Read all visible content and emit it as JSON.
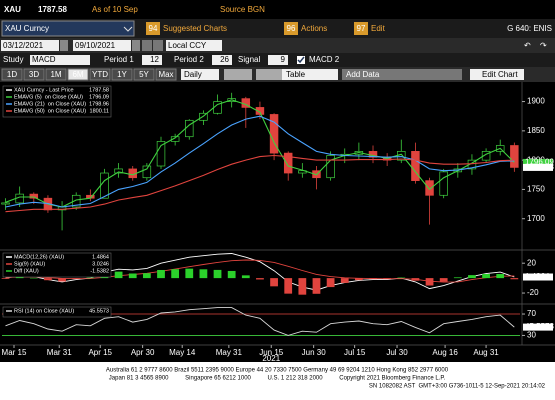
{
  "header": {
    "ticker": "XAU",
    "price": 1787.58,
    "as_of": "As of 10 Sep",
    "source": "Source BGN"
  },
  "toolbar": {
    "security": "XAU Curncy",
    "menus": [
      {
        "key": "94",
        "label": "Suggested Charts"
      },
      {
        "key": "96",
        "label": "Actions"
      },
      {
        "key": "97",
        "label": "Edit"
      }
    ],
    "page_id": "G 640: ENIS",
    "start_date": "03/12/2021",
    "end_date": "09/10/2021",
    "currency": "Local CCY",
    "study_label": "Study",
    "study": "MACD",
    "period1_label": "Period 1",
    "period1": 12,
    "period2_label": "Period 2",
    "period2": 26,
    "signal_label": "Signal",
    "signal": 9,
    "study_name": "MACD 2",
    "ranges": [
      "1D",
      "3D",
      "1M",
      "6M",
      "YTD",
      "1Y",
      "5Y",
      "Max"
    ],
    "active_range": 3,
    "frequency": "Daily",
    "table": "Table",
    "add_data": "Add Data",
    "edit_chart": "Edit Chart"
  },
  "chart_data": [
    {
      "type": "candlestick",
      "legend": "upper-left",
      "categories": [
        null,
        null,
        null,
        null,
        null,
        null,
        null,
        null,
        null,
        null,
        null,
        null,
        null,
        null,
        null,
        null,
        null,
        null,
        null,
        null,
        null,
        null,
        null,
        null,
        null,
        null,
        null,
        null,
        null,
        null,
        null,
        null,
        null,
        null,
        null,
        null,
        null
      ],
      "xlim": [
        -0.25,
        36.4
      ],
      "xticks": [
        {
          "value": 0.6,
          "label": "Mar 15"
        },
        {
          "value": 3.8,
          "label": "Mar 31"
        },
        {
          "value": 6.7,
          "label": "Apr 15"
        },
        {
          "value": 9.7,
          "label": "Apr 30"
        },
        {
          "value": 12.5,
          "label": "May 14"
        },
        {
          "value": 15.8,
          "label": "May 31"
        },
        {
          "value": 18.8,
          "label": "Jun 15"
        },
        {
          "value": 21.8,
          "label": "Jun 30"
        },
        {
          "value": 24.7,
          "label": "Jul 15"
        },
        {
          "value": 27.7,
          "label": "Jul 30"
        },
        {
          "value": 31.1,
          "label": "Aug 16"
        },
        {
          "value": 34.0,
          "label": "Aug 31"
        }
      ],
      "x_year": "2021",
      "ylim": [
        1650,
        1930
      ],
      "yticks": [
        1700,
        1750,
        1800,
        1850,
        1900
      ],
      "candles": {
        "name": "XAU Curncy - Last Price",
        "color": "#ffffff",
        "up_color": "#3fd13f",
        "down_color": "#e0443e",
        "open": [
          1725,
          1727,
          1742,
          1735,
          1715,
          1720,
          1740,
          1735,
          1778,
          1785,
          1770,
          1790,
          1832,
          1840,
          1868,
          1880,
          1900,
          1905,
          1890,
          1878,
          1812,
          1778,
          1782,
          1770,
          1808,
          1810,
          1815,
          1805,
          1800,
          1815,
          1765,
          1740,
          1780,
          1785,
          1800,
          1815,
          1825
        ],
        "high": [
          1735,
          1755,
          1745,
          1740,
          1730,
          1745,
          1750,
          1785,
          1795,
          1790,
          1795,
          1840,
          1845,
          1870,
          1885,
          1912,
          1915,
          1908,
          1900,
          1880,
          1815,
          1795,
          1790,
          1815,
          1820,
          1830,
          1825,
          1812,
          1835,
          1830,
          1770,
          1785,
          1795,
          1810,
          1820,
          1835,
          1830
        ],
        "low": [
          1715,
          1720,
          1725,
          1710,
          1680,
          1715,
          1730,
          1735,
          1770,
          1765,
          1765,
          1785,
          1825,
          1835,
          1860,
          1878,
          1890,
          1855,
          1870,
          1800,
          1765,
          1770,
          1750,
          1765,
          1795,
          1800,
          1795,
          1790,
          1795,
          1760,
          1690,
          1735,
          1770,
          1775,
          1795,
          1808,
          1780
        ],
        "close": [
          1727,
          1742,
          1735,
          1715,
          1720,
          1740,
          1735,
          1778,
          1785,
          1770,
          1790,
          1832,
          1840,
          1868,
          1880,
          1900,
          1905,
          1890,
          1878,
          1812,
          1778,
          1782,
          1770,
          1808,
          1810,
          1815,
          1805,
          1800,
          1815,
          1765,
          1740,
          1780,
          1785,
          1800,
          1815,
          1825,
          1787.58
        ]
      },
      "series": [
        {
          "name": "EMAVG (5)  on Close (XAU)",
          "color": "#3fd13f",
          "values": [
            1728,
            1737,
            1737,
            1725,
            1720,
            1732,
            1735,
            1765,
            1780,
            1775,
            1785,
            1825,
            1838,
            1860,
            1875,
            1895,
            1903,
            1895,
            1882,
            1830,
            1790,
            1783,
            1775,
            1800,
            1808,
            1813,
            1808,
            1803,
            1810,
            1780,
            1750,
            1770,
            1782,
            1795,
            1810,
            1820,
            1796.09
          ]
        },
        {
          "name": "EMAVG (21)  on Close (XAU)",
          "color": "#4aa3ff",
          "values": [
            1720,
            1725,
            1728,
            1726,
            1720,
            1723,
            1726,
            1738,
            1750,
            1755,
            1762,
            1780,
            1795,
            1812,
            1828,
            1845,
            1860,
            1870,
            1875,
            1865,
            1845,
            1830,
            1815,
            1810,
            1808,
            1807,
            1806,
            1805,
            1806,
            1800,
            1785,
            1782,
            1783,
            1787,
            1792,
            1798,
            1798.96
          ]
        },
        {
          "name": "EMAVG (50)  on Close (XAU)",
          "color": "#e0443e",
          "values": [
            1712,
            1714,
            1716,
            1716,
            1716,
            1718,
            1720,
            1725,
            1732,
            1736,
            1740,
            1748,
            1756,
            1765,
            1774,
            1784,
            1793,
            1800,
            1806,
            1808,
            1806,
            1803,
            1800,
            1800,
            1800,
            1801,
            1801,
            1801,
            1802,
            1800,
            1795,
            1793,
            1793,
            1794,
            1796,
            1799,
            1800.11
          ]
        }
      ]
    },
    {
      "type": "line",
      "legend": "upper-left",
      "ylim": [
        -32,
        35
      ],
      "yticks": [
        -20,
        20
      ],
      "series": [
        {
          "name": "MACD(12,26) (XAU)",
          "color": "#ffffff",
          "values": [
            0,
            3,
            2,
            -2,
            -5,
            -2,
            0,
            8,
            12,
            11,
            13,
            20,
            24,
            28,
            30,
            32,
            33,
            28,
            22,
            10,
            -5,
            -12,
            -16,
            -10,
            -6,
            -3,
            -2,
            -2,
            0,
            -5,
            -14,
            -10,
            -4,
            2,
            6,
            8,
            1.4864
          ]
        },
        {
          "name": "Sig(9) (XAU)",
          "color": "#e0443e",
          "values": [
            1,
            1.5,
            1.7,
            0.8,
            -0.5,
            -0.8,
            -0.6,
            1.1,
            3.3,
            4.8,
            6.4,
            9.1,
            12.1,
            15.3,
            18.2,
            21,
            23.4,
            24.3,
            23.8,
            21,
            15.8,
            10.2,
            5,
            2,
            0.4,
            -0.3,
            -0.6,
            -0.9,
            -0.7,
            -1.6,
            -4.1,
            -5.3,
            -5,
            -2,
            0.5,
            2.5,
            3.0246
          ]
        },
        {
          "name": "Diff (XAU)",
          "color": "#2bd12b",
          "negative_color": "#e0443e",
          "kind": "bar",
          "values": [
            -1,
            1.5,
            0.3,
            -2.8,
            -4.5,
            -1.2,
            0.6,
            6.9,
            8.7,
            6.2,
            6.6,
            10.9,
            11.9,
            12.7,
            11.8,
            11,
            9.6,
            3.7,
            -1.8,
            -11,
            -20.8,
            -22.2,
            -21,
            -12,
            -6.4,
            -2.7,
            -1.4,
            -1.1,
            0.7,
            -3.4,
            -9.9,
            -4.7,
            1,
            4,
            5.5,
            5.5,
            -1.5382
          ]
        }
      ]
    },
    {
      "type": "line",
      "legend": "upper-left",
      "grid": true,
      "ylim": [
        14,
        85
      ],
      "yticks": [
        30,
        70
      ],
      "series": [
        {
          "name": "RSI (14) on Close (XAU)",
          "color": "#d8d8d8",
          "values": [
            48,
            58,
            52,
            42,
            38,
            50,
            48,
            62,
            65,
            55,
            60,
            72,
            74,
            78,
            80,
            82,
            82,
            68,
            62,
            40,
            30,
            38,
            36,
            52,
            55,
            57,
            52,
            50,
            56,
            45,
            35,
            52,
            56,
            60,
            65,
            68,
            45.5573
          ]
        }
      ]
    }
  ],
  "footer": [
    "Australia 61 2 9777 8600 Brazil 5511 2395 9000 Europe 44 20 7330 7500 Germany 49 69 9204 1210 Hong Kong 852 2977 6000",
    "Japan 81 3 4565 8900          Singapore 65 6212 1000          U.S. 1 212 318 2000          Copyright 2021 Bloomberg Finance L.P.",
    "SN 1082082 AST  GMT+3:00 G736-1011-5 12-Sep-2021 20:14:02"
  ]
}
